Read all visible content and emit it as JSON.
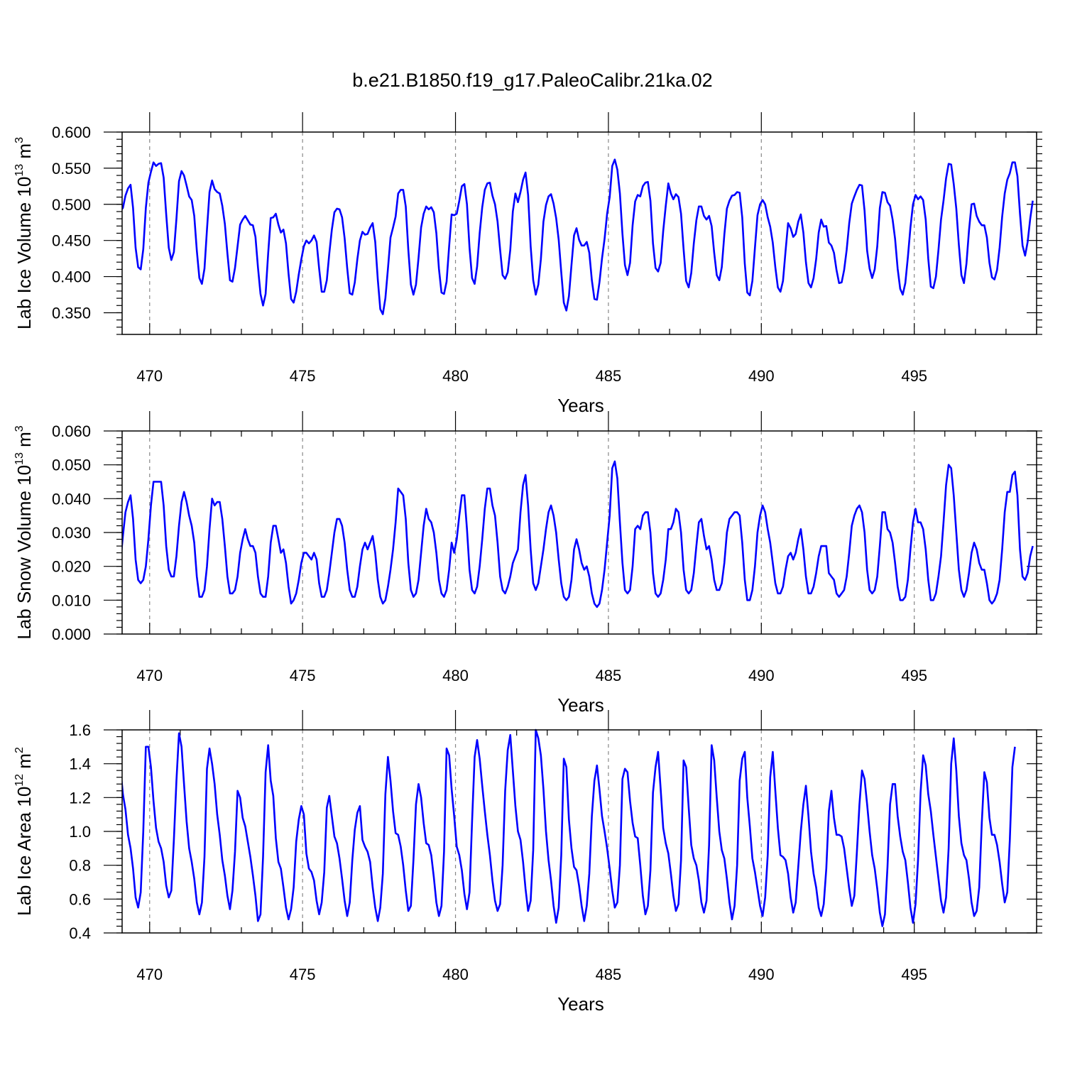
{
  "figure": {
    "title": "b.e21.B1850.f19_g17.PaleoCalibr.21ka.02"
  },
  "chart_data": [
    {
      "type": "line",
      "name": "lab-ice-volume",
      "xlabel": "Years",
      "ylabel_main": "Lab Ice Volume 10",
      "ylabel_exp": "13",
      "ylabel_unit": " m",
      "ylabel_unit_exp": "3",
      "xlim": [
        469.1,
        499.0
      ],
      "ylim": [
        0.32,
        0.6
      ],
      "yticks": [
        0.35,
        0.4,
        0.45,
        0.5,
        0.55,
        0.6
      ],
      "ytick_labels": [
        "0.350",
        "0.400",
        "0.450",
        "0.500",
        "0.550",
        "0.600"
      ],
      "xticks": [
        470,
        475,
        480,
        485,
        490,
        495
      ],
      "xtick_labels": [
        "470",
        "475",
        "480",
        "485",
        "490",
        "495"
      ],
      "grid_x": [
        470,
        475,
        480,
        485,
        490,
        495
      ],
      "color": "#0000ff",
      "x_start": 469.042,
      "x_step": 0.08333,
      "values": [
        0.491,
        0.495,
        0.512,
        0.522,
        0.527,
        0.495,
        0.44,
        0.413,
        0.41,
        0.438,
        0.495,
        0.53,
        0.545,
        0.558,
        0.553,
        0.556,
        0.557,
        0.537,
        0.486,
        0.44,
        0.423,
        0.434,
        0.48,
        0.532,
        0.546,
        0.54,
        0.526,
        0.511,
        0.506,
        0.484,
        0.436,
        0.398,
        0.39,
        0.411,
        0.465,
        0.517,
        0.533,
        0.521,
        0.517,
        0.515,
        0.498,
        0.473,
        0.432,
        0.395,
        0.393,
        0.412,
        0.442,
        0.472,
        0.479,
        0.484,
        0.478,
        0.472,
        0.471,
        0.455,
        0.413,
        0.376,
        0.36,
        0.376,
        0.432,
        0.481,
        0.482,
        0.487,
        0.472,
        0.461,
        0.465,
        0.446,
        0.404,
        0.369,
        0.364,
        0.379,
        0.403,
        0.424,
        0.442,
        0.45,
        0.446,
        0.45,
        0.457,
        0.448,
        0.411,
        0.379,
        0.379,
        0.395,
        0.432,
        0.465,
        0.489,
        0.494,
        0.493,
        0.482,
        0.453,
        0.412,
        0.377,
        0.375,
        0.392,
        0.424,
        0.45,
        0.462,
        0.458,
        0.459,
        0.468,
        0.474,
        0.448,
        0.396,
        0.355,
        0.348,
        0.37,
        0.411,
        0.454,
        0.468,
        0.483,
        0.515,
        0.52,
        0.52,
        0.497,
        0.437,
        0.389,
        0.375,
        0.389,
        0.426,
        0.468,
        0.487,
        0.497,
        0.493,
        0.496,
        0.489,
        0.46,
        0.411,
        0.378,
        0.376,
        0.393,
        0.442,
        0.486,
        0.485,
        0.487,
        0.505,
        0.525,
        0.528,
        0.5,
        0.44,
        0.398,
        0.39,
        0.414,
        0.46,
        0.496,
        0.52,
        0.529,
        0.53,
        0.512,
        0.5,
        0.476,
        0.437,
        0.402,
        0.397,
        0.406,
        0.437,
        0.49,
        0.515,
        0.503,
        0.517,
        0.534,
        0.544,
        0.513,
        0.442,
        0.395,
        0.375,
        0.389,
        0.424,
        0.476,
        0.499,
        0.511,
        0.514,
        0.501,
        0.481,
        0.451,
        0.406,
        0.364,
        0.353,
        0.373,
        0.416,
        0.457,
        0.467,
        0.451,
        0.443,
        0.443,
        0.448,
        0.433,
        0.395,
        0.369,
        0.368,
        0.392,
        0.425,
        0.452,
        0.487,
        0.51,
        0.553,
        0.562,
        0.548,
        0.515,
        0.459,
        0.416,
        0.402,
        0.419,
        0.471,
        0.504,
        0.513,
        0.511,
        0.525,
        0.53,
        0.531,
        0.505,
        0.446,
        0.412,
        0.407,
        0.419,
        0.463,
        0.498,
        0.529,
        0.515,
        0.507,
        0.514,
        0.51,
        0.487,
        0.438,
        0.394,
        0.385,
        0.405,
        0.446,
        0.478,
        0.497,
        0.497,
        0.484,
        0.479,
        0.484,
        0.47,
        0.433,
        0.402,
        0.395,
        0.413,
        0.458,
        0.494,
        0.505,
        0.512,
        0.513,
        0.517,
        0.516,
        0.482,
        0.418,
        0.378,
        0.374,
        0.394,
        0.44,
        0.485,
        0.5,
        0.506,
        0.5,
        0.482,
        0.469,
        0.447,
        0.413,
        0.385,
        0.379,
        0.394,
        0.435,
        0.474,
        0.467,
        0.455,
        0.459,
        0.476,
        0.486,
        0.461,
        0.42,
        0.391,
        0.385,
        0.398,
        0.424,
        0.461,
        0.479,
        0.469,
        0.47,
        0.447,
        0.443,
        0.433,
        0.409,
        0.391,
        0.392,
        0.409,
        0.437,
        0.474,
        0.501,
        0.511,
        0.52,
        0.527,
        0.526,
        0.491,
        0.436,
        0.411,
        0.398,
        0.41,
        0.442,
        0.495,
        0.517,
        0.516,
        0.503,
        0.498,
        0.479,
        0.452,
        0.411,
        0.383,
        0.375,
        0.391,
        0.427,
        0.468,
        0.5,
        0.513,
        0.507,
        0.511,
        0.506,
        0.479,
        0.425,
        0.386,
        0.384,
        0.4,
        0.437,
        0.479,
        0.505,
        0.536,
        0.556,
        0.555,
        0.528,
        0.494,
        0.444,
        0.402,
        0.391,
        0.418,
        0.464,
        0.5,
        0.501,
        0.484,
        0.476,
        0.471,
        0.471,
        0.454,
        0.419,
        0.399,
        0.396,
        0.409,
        0.44,
        0.483,
        0.515,
        0.534,
        0.543,
        0.558,
        0.558,
        0.539,
        0.487,
        0.443,
        0.429,
        0.448,
        0.48,
        0.505
      ]
    },
    {
      "type": "line",
      "name": "lab-snow-volume",
      "xlabel": "Years",
      "ylabel_main": "Lab Snow Volume 10",
      "ylabel_exp": "13",
      "ylabel_unit": " m",
      "ylabel_unit_exp": "3",
      "xlim": [
        469.1,
        499.0
      ],
      "ylim": [
        0.0,
        0.06
      ],
      "yticks": [
        0.0,
        0.01,
        0.02,
        0.03,
        0.04,
        0.05,
        0.06
      ],
      "ytick_labels": [
        "0.000",
        "0.010",
        "0.020",
        "0.030",
        "0.040",
        "0.050",
        "0.060"
      ],
      "xticks": [
        470,
        475,
        480,
        485,
        490,
        495
      ],
      "xtick_labels": [
        "470",
        "475",
        "480",
        "485",
        "490",
        "495"
      ],
      "grid_x": [
        470,
        475,
        480,
        485,
        490,
        495
      ],
      "color": "#0000ff",
      "x_start": 469.042,
      "x_step": 0.08333,
      "values": [
        0.021,
        0.029,
        0.036,
        0.039,
        0.041,
        0.034,
        0.022,
        0.016,
        0.015,
        0.016,
        0.02,
        0.028,
        0.038,
        0.045,
        0.045,
        0.045,
        0.045,
        0.038,
        0.026,
        0.019,
        0.017,
        0.017,
        0.023,
        0.032,
        0.039,
        0.042,
        0.039,
        0.035,
        0.032,
        0.027,
        0.017,
        0.011,
        0.011,
        0.013,
        0.02,
        0.031,
        0.04,
        0.038,
        0.039,
        0.039,
        0.034,
        0.026,
        0.017,
        0.012,
        0.012,
        0.013,
        0.017,
        0.024,
        0.028,
        0.031,
        0.028,
        0.026,
        0.026,
        0.024,
        0.017,
        0.012,
        0.011,
        0.011,
        0.017,
        0.027,
        0.032,
        0.032,
        0.028,
        0.024,
        0.025,
        0.021,
        0.014,
        0.009,
        0.01,
        0.012,
        0.016,
        0.021,
        0.024,
        0.024,
        0.023,
        0.022,
        0.024,
        0.022,
        0.015,
        0.011,
        0.011,
        0.013,
        0.018,
        0.024,
        0.03,
        0.034,
        0.034,
        0.032,
        0.027,
        0.019,
        0.013,
        0.011,
        0.011,
        0.014,
        0.02,
        0.025,
        0.027,
        0.025,
        0.027,
        0.029,
        0.024,
        0.016,
        0.011,
        0.009,
        0.01,
        0.014,
        0.019,
        0.025,
        0.033,
        0.043,
        0.042,
        0.041,
        0.034,
        0.021,
        0.013,
        0.011,
        0.012,
        0.016,
        0.024,
        0.032,
        0.037,
        0.034,
        0.033,
        0.03,
        0.024,
        0.016,
        0.012,
        0.011,
        0.013,
        0.019,
        0.027,
        0.024,
        0.028,
        0.035,
        0.041,
        0.041,
        0.031,
        0.019,
        0.013,
        0.012,
        0.014,
        0.02,
        0.028,
        0.037,
        0.043,
        0.043,
        0.038,
        0.035,
        0.027,
        0.017,
        0.013,
        0.012,
        0.014,
        0.017,
        0.021,
        0.023,
        0.025,
        0.036,
        0.044,
        0.047,
        0.038,
        0.025,
        0.015,
        0.013,
        0.015,
        0.02,
        0.025,
        0.031,
        0.036,
        0.038,
        0.035,
        0.03,
        0.022,
        0.015,
        0.011,
        0.01,
        0.011,
        0.016,
        0.025,
        0.028,
        0.025,
        0.021,
        0.019,
        0.02,
        0.017,
        0.012,
        0.009,
        0.008,
        0.009,
        0.013,
        0.019,
        0.027,
        0.035,
        0.049,
        0.051,
        0.046,
        0.033,
        0.021,
        0.013,
        0.012,
        0.013,
        0.02,
        0.031,
        0.032,
        0.031,
        0.035,
        0.036,
        0.036,
        0.03,
        0.018,
        0.012,
        0.011,
        0.012,
        0.016,
        0.022,
        0.031,
        0.031,
        0.033,
        0.037,
        0.036,
        0.03,
        0.019,
        0.013,
        0.012,
        0.013,
        0.018,
        0.026,
        0.033,
        0.034,
        0.029,
        0.025,
        0.026,
        0.022,
        0.016,
        0.013,
        0.013,
        0.015,
        0.021,
        0.03,
        0.034,
        0.035,
        0.036,
        0.036,
        0.035,
        0.027,
        0.016,
        0.01,
        0.01,
        0.013,
        0.02,
        0.03,
        0.035,
        0.038,
        0.036,
        0.031,
        0.027,
        0.021,
        0.015,
        0.012,
        0.012,
        0.014,
        0.019,
        0.023,
        0.024,
        0.022,
        0.024,
        0.028,
        0.031,
        0.025,
        0.017,
        0.012,
        0.012,
        0.014,
        0.018,
        0.023,
        0.026,
        0.026,
        0.026,
        0.018,
        0.017,
        0.016,
        0.012,
        0.011,
        0.012,
        0.013,
        0.017,
        0.024,
        0.032,
        0.035,
        0.037,
        0.038,
        0.036,
        0.03,
        0.019,
        0.013,
        0.012,
        0.013,
        0.017,
        0.026,
        0.036,
        0.036,
        0.031,
        0.03,
        0.027,
        0.021,
        0.014,
        0.01,
        0.01,
        0.011,
        0.016,
        0.025,
        0.033,
        0.037,
        0.033,
        0.033,
        0.031,
        0.025,
        0.016,
        0.01,
        0.01,
        0.012,
        0.017,
        0.023,
        0.033,
        0.044,
        0.05,
        0.049,
        0.041,
        0.03,
        0.019,
        0.013,
        0.011,
        0.013,
        0.018,
        0.024,
        0.027,
        0.025,
        0.021,
        0.019,
        0.019,
        0.015,
        0.01,
        0.009,
        0.01,
        0.012,
        0.016,
        0.025,
        0.036,
        0.042,
        0.042,
        0.047,
        0.048,
        0.041,
        0.025,
        0.017,
        0.016,
        0.018,
        0.023,
        0.026
      ]
    },
    {
      "type": "line",
      "name": "lab-ice-area",
      "xlabel": "Years",
      "ylabel_main": "Lab Ice Area 10",
      "ylabel_exp": "12",
      "ylabel_unit": " m",
      "ylabel_unit_exp": "2",
      "xlim": [
        469.1,
        499.0
      ],
      "ylim": [
        0.4,
        1.6
      ],
      "yticks": [
        0.4,
        0.6,
        0.8,
        1.0,
        1.2,
        1.4,
        1.6
      ],
      "ytick_labels": [
        "0.4",
        "0.6",
        "0.8",
        "1.0",
        "1.2",
        "1.4",
        "1.6"
      ],
      "xticks": [
        470,
        475,
        480,
        485,
        490,
        495
      ],
      "xtick_labels": [
        "470",
        "475",
        "480",
        "485",
        "490",
        "495"
      ],
      "grid_x": [
        470,
        475,
        480,
        485,
        490,
        495
      ],
      "color": "#0000ff",
      "x_start": 469.042,
      "x_step": 0.08333,
      "values": [
        1.38,
        1.22,
        1.13,
        0.98,
        0.9,
        0.78,
        0.61,
        0.55,
        0.64,
        1.0,
        1.5,
        1.5,
        1.38,
        1.18,
        1.02,
        0.94,
        0.9,
        0.82,
        0.68,
        0.61,
        0.65,
        0.95,
        1.3,
        1.58,
        1.5,
        1.28,
        1.06,
        0.9,
        0.82,
        0.72,
        0.58,
        0.51,
        0.58,
        0.85,
        1.37,
        1.49,
        1.4,
        1.28,
        1.1,
        0.98,
        0.83,
        0.74,
        0.62,
        0.54,
        0.65,
        0.88,
        1.24,
        1.2,
        1.08,
        1.03,
        0.94,
        0.85,
        0.74,
        0.62,
        0.47,
        0.51,
        0.85,
        1.35,
        1.51,
        1.3,
        1.21,
        0.96,
        0.82,
        0.78,
        0.67,
        0.55,
        0.48,
        0.54,
        0.67,
        0.94,
        1.07,
        1.15,
        1.1,
        0.87,
        0.78,
        0.76,
        0.71,
        0.59,
        0.51,
        0.58,
        0.76,
        1.14,
        1.21,
        1.09,
        0.97,
        0.93,
        0.84,
        0.72,
        0.59,
        0.5,
        0.58,
        0.83,
        1.01,
        1.11,
        1.15,
        0.95,
        0.91,
        0.88,
        0.82,
        0.67,
        0.55,
        0.47,
        0.55,
        0.75,
        1.22,
        1.44,
        1.3,
        1.12,
        0.99,
        0.98,
        0.91,
        0.8,
        0.65,
        0.53,
        0.56,
        0.83,
        1.16,
        1.28,
        1.2,
        1.05,
        0.93,
        0.92,
        0.86,
        0.73,
        0.58,
        0.5,
        0.56,
        0.88,
        1.49,
        1.45,
        1.25,
        1.09,
        0.91,
        0.86,
        0.77,
        0.63,
        0.54,
        0.64,
        1.06,
        1.44,
        1.54,
        1.43,
        1.27,
        1.12,
        0.98,
        0.86,
        0.71,
        0.59,
        0.53,
        0.57,
        0.8,
        1.24,
        1.48,
        1.57,
        1.36,
        1.15,
        1.0,
        0.95,
        0.82,
        0.66,
        0.53,
        0.59,
        0.89,
        1.6,
        1.55,
        1.45,
        1.25,
        1.0,
        0.83,
        0.71,
        0.56,
        0.46,
        0.55,
        0.86,
        1.43,
        1.38,
        1.07,
        0.9,
        0.79,
        0.77,
        0.68,
        0.56,
        0.47,
        0.56,
        0.75,
        1.09,
        1.3,
        1.39,
        1.25,
        1.09,
        1.0,
        0.9,
        0.78,
        0.65,
        0.55,
        0.58,
        0.8,
        1.31,
        1.37,
        1.35,
        1.18,
        1.05,
        0.97,
        0.96,
        0.8,
        0.62,
        0.51,
        0.56,
        0.77,
        1.23,
        1.38,
        1.47,
        1.25,
        1.02,
        0.93,
        0.87,
        0.75,
        0.62,
        0.53,
        0.57,
        0.83,
        1.42,
        1.38,
        1.14,
        0.92,
        0.84,
        0.8,
        0.71,
        0.58,
        0.52,
        0.59,
        0.92,
        1.51,
        1.42,
        1.2,
        1.0,
        0.89,
        0.84,
        0.72,
        0.58,
        0.48,
        0.56,
        0.8,
        1.3,
        1.43,
        1.47,
        1.2,
        1.03,
        0.84,
        0.76,
        0.66,
        0.56,
        0.5,
        0.61,
        0.86,
        1.32,
        1.47,
        1.24,
        1.02,
        0.86,
        0.85,
        0.83,
        0.75,
        0.61,
        0.52,
        0.58,
        0.79,
        1.0,
        1.16,
        1.27,
        1.09,
        0.88,
        0.75,
        0.67,
        0.55,
        0.5,
        0.57,
        0.78,
        1.12,
        1.24,
        1.08,
        0.98,
        0.98,
        0.97,
        0.9,
        0.78,
        0.66,
        0.56,
        0.62,
        0.88,
        1.16,
        1.36,
        1.31,
        1.16,
        1.0,
        0.86,
        0.78,
        0.66,
        0.52,
        0.44,
        0.51,
        0.79,
        1.16,
        1.28,
        1.28,
        1.09,
        0.97,
        0.88,
        0.83,
        0.7,
        0.55,
        0.46,
        0.57,
        0.83,
        1.23,
        1.45,
        1.39,
        1.22,
        1.12,
        0.98,
        0.85,
        0.72,
        0.59,
        0.52,
        0.61,
        0.9,
        1.4,
        1.55,
        1.36,
        1.09,
        0.93,
        0.86,
        0.83,
        0.72,
        0.58,
        0.5,
        0.53,
        0.67,
        1.05,
        1.35,
        1.29,
        1.08,
        0.98,
        0.98,
        0.92,
        0.82,
        0.69,
        0.58,
        0.64,
        0.95,
        1.38,
        1.5
      ]
    }
  ]
}
